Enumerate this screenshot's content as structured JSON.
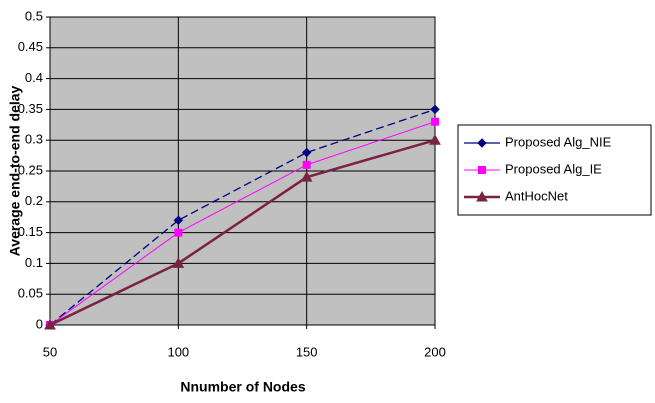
{
  "chart_data": {
    "type": "line",
    "x_label": "Nnumber of Nodes",
    "y_label": "Average end-to-end delay",
    "x": [
      50,
      100,
      150,
      200
    ],
    "xlim": [
      50,
      200
    ],
    "xticks": [
      50,
      100,
      150,
      200
    ],
    "ylim": [
      0,
      0.5
    ],
    "yticks": [
      0,
      0.05,
      0.1,
      0.15,
      0.2,
      0.25,
      0.3,
      0.35,
      0.4,
      0.45,
      0.5
    ],
    "grid": true,
    "legend": "right",
    "series": [
      {
        "name": "Proposed Alg_NIE",
        "color": "#000080",
        "marker": "diamond",
        "values": [
          0,
          0.17,
          0.28,
          0.35
        ]
      },
      {
        "name": "Proposed Alg_IE",
        "color": "#ff00ff",
        "marker": "square",
        "values": [
          0,
          0.15,
          0.26,
          0.33
        ]
      },
      {
        "name": "AntHocNet",
        "color": "#7a2243",
        "marker": "triangle",
        "values": [
          0,
          0.1,
          0.24,
          0.3
        ]
      }
    ]
  }
}
